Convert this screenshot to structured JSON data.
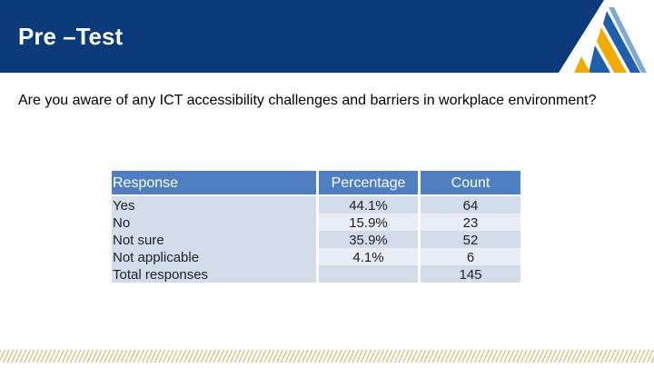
{
  "slide": {
    "title": "Pre –Test",
    "question": "Are you aware of any ICT accessibility challenges and barriers in workplace environment?"
  },
  "table": {
    "headers": {
      "response": "Response",
      "percentage": "Percentage",
      "count": "Count"
    },
    "rows": [
      {
        "response": "Yes",
        "percentage": "44.1%",
        "count": "64"
      },
      {
        "response": "No",
        "percentage": "15.9%",
        "count": "23"
      },
      {
        "response": "Not sure",
        "percentage": "35.9%",
        "count": "52"
      },
      {
        "response": "Not applicable",
        "percentage": "4.1%",
        "count": "6"
      },
      {
        "response": "Total responses",
        "percentage": "",
        "count": "145"
      }
    ]
  },
  "colors": {
    "header_navy": "#0b3a7a",
    "table_header": "#4f7fc1",
    "logo_gold": "#f2a900",
    "logo_blue": "#1f5fae"
  }
}
